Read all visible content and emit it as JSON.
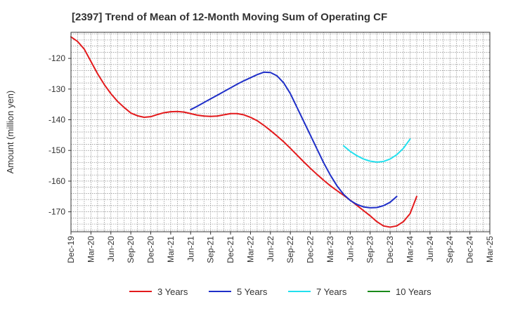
{
  "chart_data": {
    "type": "line",
    "title": "[2397]  Trend of Mean of 12-Month Moving Sum of Operating CF",
    "xlabel": "",
    "ylabel": "Amount (million yen)",
    "ylim": [
      -176.5,
      -111.5
    ],
    "yticks": [
      -120,
      -130,
      -140,
      -150,
      -160,
      -170
    ],
    "xlim": [
      "Dec-19",
      "Mar-25"
    ],
    "x_tick_labels": [
      "Dec-19",
      "Mar-20",
      "Jun-20",
      "Sep-20",
      "Dec-20",
      "Mar-21",
      "Jun-21",
      "Sep-21",
      "Dec-21",
      "Mar-22",
      "Jun-22",
      "Sep-22",
      "Dec-22",
      "Mar-23",
      "Jun-23",
      "Sep-23",
      "Dec-23",
      "Mar-24",
      "Jun-24",
      "Sep-24",
      "Dec-24",
      "Mar-25"
    ],
    "grid": true,
    "legend_position": "bottom",
    "series": [
      {
        "name": "3 Years",
        "color": "#e31a1c",
        "points": [
          [
            0,
            -113.0
          ],
          [
            1,
            -114.5
          ],
          [
            2,
            -117.0
          ],
          [
            3,
            -121.0
          ],
          [
            4,
            -125.0
          ],
          [
            5,
            -128.5
          ],
          [
            6,
            -131.5
          ],
          [
            7,
            -134.0
          ],
          [
            8,
            -136.0
          ],
          [
            9,
            -137.8
          ],
          [
            10,
            -138.7
          ],
          [
            11,
            -139.2
          ],
          [
            12,
            -139.0
          ],
          [
            13,
            -138.3
          ],
          [
            14,
            -137.7
          ],
          [
            15,
            -137.4
          ],
          [
            16,
            -137.3
          ],
          [
            17,
            -137.5
          ],
          [
            18,
            -138.0
          ],
          [
            19,
            -138.5
          ],
          [
            20,
            -138.8
          ],
          [
            21,
            -138.9
          ],
          [
            22,
            -138.8
          ],
          [
            23,
            -138.4
          ],
          [
            24,
            -138.0
          ],
          [
            25,
            -138.0
          ],
          [
            26,
            -138.4
          ],
          [
            27,
            -139.2
          ],
          [
            28,
            -140.3
          ],
          [
            29,
            -141.8
          ],
          [
            30,
            -143.5
          ],
          [
            31,
            -145.3
          ],
          [
            32,
            -147.2
          ],
          [
            33,
            -149.3
          ],
          [
            34,
            -151.5
          ],
          [
            35,
            -153.7
          ],
          [
            36,
            -155.8
          ],
          [
            37,
            -157.8
          ],
          [
            38,
            -159.7
          ],
          [
            39,
            -161.5
          ],
          [
            40,
            -163.1
          ],
          [
            41,
            -164.6
          ],
          [
            42,
            -166.2
          ],
          [
            43,
            -167.9
          ],
          [
            44,
            -169.6
          ],
          [
            45,
            -171.3
          ],
          [
            46,
            -173.2
          ],
          [
            47,
            -174.6
          ],
          [
            48,
            -175.0
          ],
          [
            49,
            -174.6
          ],
          [
            50,
            -173.2
          ],
          [
            51,
            -170.6
          ],
          [
            52,
            -165.0
          ]
        ]
      },
      {
        "name": "5 Years",
        "color": "#1f2fc8",
        "points": [
          [
            18,
            -136.7
          ],
          [
            19,
            -135.6
          ],
          [
            20,
            -134.4
          ],
          [
            21,
            -133.2
          ],
          [
            22,
            -132.0
          ],
          [
            23,
            -130.8
          ],
          [
            24,
            -129.6
          ],
          [
            25,
            -128.4
          ],
          [
            26,
            -127.3
          ],
          [
            27,
            -126.3
          ],
          [
            28,
            -125.3
          ],
          [
            29,
            -124.5
          ],
          [
            30,
            -124.6
          ],
          [
            31,
            -125.7
          ],
          [
            32,
            -128.0
          ],
          [
            33,
            -131.5
          ],
          [
            34,
            -136.0
          ],
          [
            35,
            -140.5
          ],
          [
            36,
            -145.0
          ],
          [
            37,
            -149.5
          ],
          [
            38,
            -154.0
          ],
          [
            39,
            -158.0
          ],
          [
            40,
            -161.5
          ],
          [
            41,
            -164.3
          ],
          [
            42,
            -166.3
          ],
          [
            43,
            -167.6
          ],
          [
            44,
            -168.4
          ],
          [
            45,
            -168.7
          ],
          [
            46,
            -168.6
          ],
          [
            47,
            -168.0
          ],
          [
            48,
            -166.9
          ],
          [
            49,
            -165.0
          ]
        ]
      },
      {
        "name": "7 Years",
        "color": "#22e0ee",
        "points": [
          [
            41,
            -148.5
          ],
          [
            42,
            -150.3
          ],
          [
            43,
            -151.7
          ],
          [
            44,
            -152.8
          ],
          [
            45,
            -153.5
          ],
          [
            46,
            -153.8
          ],
          [
            47,
            -153.6
          ],
          [
            48,
            -152.8
          ],
          [
            49,
            -151.4
          ],
          [
            50,
            -149.3
          ],
          [
            51,
            -146.3
          ]
        ]
      },
      {
        "name": "10 Years",
        "color": "#1a8a1a",
        "points": []
      }
    ]
  }
}
